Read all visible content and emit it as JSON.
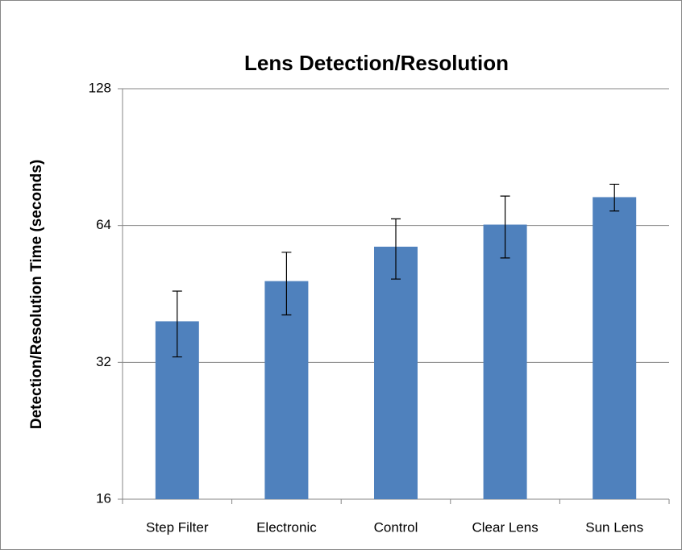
{
  "chart_data": {
    "type": "bar",
    "title": "Lens Detection/Resolution",
    "y_label": "Detection/Resolution Time (seconds)",
    "categories": [
      "Step Filter",
      "Electronic",
      "Control",
      "Clear Lens",
      "Sun Lens"
    ],
    "values": [
      39.4,
      48.3,
      57.5,
      64.3,
      73.9
    ],
    "errors": [
      6.5,
      7.6,
      8.7,
      10,
      5
    ],
    "color": "#4f81bd",
    "log_scale": true,
    "ylim": [
      16,
      128
    ],
    "yticks": [
      16,
      32,
      64,
      128
    ],
    "grid": true
  }
}
